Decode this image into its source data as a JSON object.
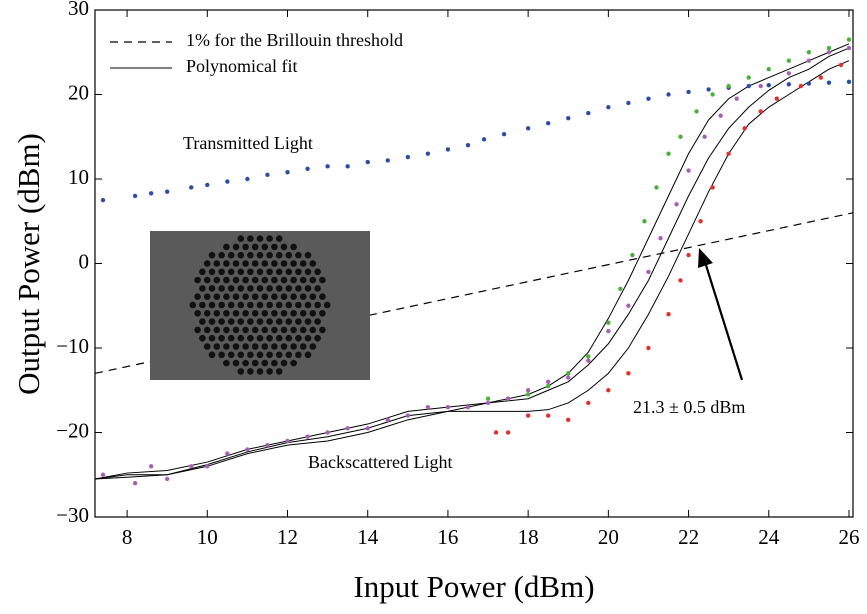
{
  "chart_data": {
    "type": "scatter",
    "xlabel": "Input Power (dBm)",
    "ylabel": "Output Power (dBm)",
    "xlim": [
      7.2,
      26.1
    ],
    "ylim": [
      -30,
      30
    ],
    "xticks": [
      8,
      10,
      12,
      14,
      16,
      18,
      20,
      22,
      24,
      26
    ],
    "yticks": [
      {
        "value": -30,
        "label": "−30"
      },
      {
        "value": -20,
        "label": "−20"
      },
      {
        "value": -10,
        "label": "−10"
      },
      0,
      10,
      20,
      30
    ],
    "series": [
      {
        "color": "#2a4ea8",
        "x": [
          7.4,
          8.2,
          8.6,
          9,
          9.6,
          10,
          10.5,
          11,
          11.5,
          12,
          12.5,
          13,
          13.5,
          14,
          14.5,
          15,
          15.5,
          16,
          16.5,
          16.9,
          17.4,
          18,
          18.5,
          19,
          19.5,
          20,
          20.5,
          21,
          21.5,
          22,
          22.5,
          23,
          23.5,
          24,
          24.5,
          25,
          25.5,
          26
        ],
        "values": [
          7.5,
          8,
          8.3,
          8.5,
          9,
          9.3,
          9.7,
          10,
          10.5,
          10.8,
          11.2,
          11.5,
          11.5,
          12,
          12.2,
          12.6,
          13,
          13.5,
          14,
          14.7,
          15.3,
          16,
          16.6,
          17.2,
          17.8,
          18.5,
          19,
          19.5,
          20,
          20.3,
          20.6,
          20.8,
          21,
          21.1,
          21.2,
          21.3,
          21.4,
          21.5
        ]
      },
      {
        "color": "#4caf3a",
        "x": [
          17,
          17.5,
          18,
          18.5,
          19,
          19.5,
          20,
          20.3,
          20.6,
          20.9,
          21.2,
          21.5,
          21.8,
          22.2,
          22.6,
          23,
          23.5,
          24,
          24.5,
          25,
          25.5,
          26
        ],
        "values": [
          -16,
          -16,
          -15.5,
          -14.5,
          -13,
          -11,
          -7,
          -3,
          1,
          5,
          9,
          13,
          15,
          18,
          20,
          21,
          22,
          23,
          24,
          25,
          25.5,
          26.5
        ]
      },
      {
        "color": "#a85fb8",
        "x": [
          7.4,
          8.2,
          8.6,
          9,
          9.6,
          10,
          10.5,
          11,
          11.5,
          12,
          12.5,
          13,
          13.5,
          14,
          14.5,
          15,
          15.5,
          16,
          16.5,
          17,
          17.5,
          18,
          18.5,
          19,
          19.5,
          20,
          20.5,
          21,
          21.3,
          21.7,
          22,
          22.4,
          22.8,
          23.2,
          23.8,
          24.5,
          25,
          25.5,
          26
        ],
        "values": [
          -25,
          -26,
          -24,
          -25.5,
          -24,
          -24,
          -22.5,
          -22,
          -21.5,
          -21,
          -20.5,
          -20,
          -19.5,
          -19.5,
          -18.5,
          -18,
          -17,
          -17,
          -17,
          -16.5,
          -16,
          -15,
          -14,
          -13.5,
          -11.5,
          -8,
          -5,
          -1,
          3,
          7,
          11,
          15,
          17.5,
          19.5,
          21,
          22.5,
          24,
          25,
          25.5
        ]
      },
      {
        "color": "#e2312b",
        "x": [
          17.2,
          17.5,
          18,
          18.5,
          19,
          19.5,
          20,
          20.5,
          21,
          21.5,
          21.8,
          22,
          22.3,
          22.6,
          23,
          23.4,
          23.8,
          24.2,
          24.8,
          25.3,
          25.8
        ],
        "values": [
          -20,
          -20,
          -18,
          -18,
          -18.5,
          -16.5,
          -15,
          -13,
          -10,
          -6,
          -2,
          1,
          5,
          9,
          13,
          16,
          18,
          19.5,
          21,
          22,
          23.5
        ]
      }
    ],
    "fit": {
      "name": "Polynomical fit",
      "color": "#000000",
      "x": [
        7.2,
        8,
        9,
        10,
        11,
        12,
        13,
        14,
        15,
        16,
        17,
        18,
        18.5,
        19,
        19.5,
        20,
        20.5,
        21,
        21.5,
        22,
        22.5,
        23,
        23.5,
        24,
        24.5,
        25,
        25.5,
        26
      ],
      "curves": [
        [
          -25.5,
          -24.8,
          -24.5,
          -23.5,
          -22,
          -21,
          -20,
          -19,
          -17.5,
          -17,
          -16.5,
          -15.5,
          -14.5,
          -13,
          -10.5,
          -6.5,
          -2,
          3,
          8,
          13,
          17,
          19.5,
          21,
          22,
          23,
          24,
          25,
          26
        ],
        [
          -25.5,
          -25,
          -25,
          -23.8,
          -22.3,
          -21.2,
          -20.5,
          -19.5,
          -18,
          -17.5,
          -16.5,
          -16,
          -15,
          -14,
          -12,
          -9.5,
          -6,
          -2,
          3,
          8,
          12.5,
          16,
          18.5,
          20.5,
          22,
          23,
          24.5,
          25.5
        ],
        [
          -25.5,
          -25.3,
          -25,
          -24,
          -22.5,
          -21.5,
          -21,
          -20,
          -18.5,
          -17.5,
          -17.5,
          -17.5,
          -17.3,
          -16.5,
          -15,
          -13,
          -10,
          -6,
          -1.5,
          3.5,
          8.5,
          13,
          16.5,
          18.5,
          20,
          21.5,
          23,
          24
        ]
      ]
    },
    "threshold": {
      "name": "1% for the Brillouin threshold",
      "color": "#000000",
      "x": [
        7.2,
        26.1
      ],
      "values": [
        -13,
        6
      ]
    },
    "annotations": [
      "Transmitted Light",
      "Backscattered Light",
      "21.3 ± 0.5 dBm"
    ]
  }
}
